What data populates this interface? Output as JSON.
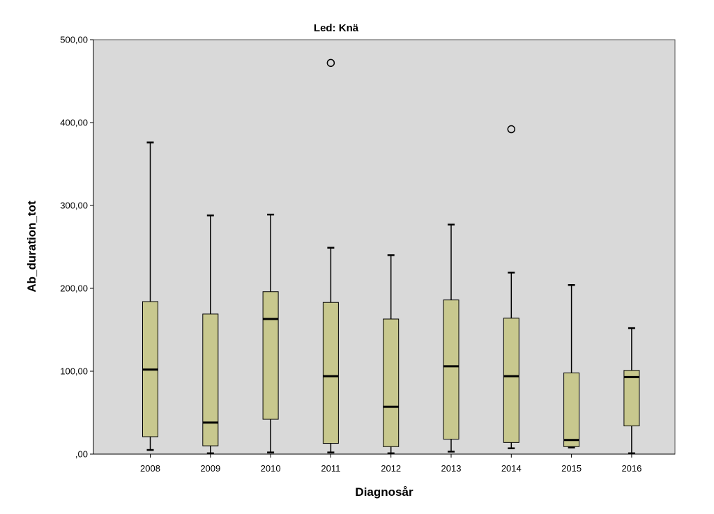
{
  "chart_data": {
    "type": "boxplot",
    "title": "Led: Knä",
    "xlabel": "Diagnosår",
    "ylabel": "Ab_duration_tot",
    "ylim": [
      0,
      500
    ],
    "y_ticks": [
      0,
      100,
      200,
      300,
      400,
      500
    ],
    "y_tick_labels": [
      ",00",
      "100,00",
      "200,00",
      "300,00",
      "400,00",
      "500,00"
    ],
    "categories": [
      "2008",
      "2009",
      "2010",
      "2011",
      "2012",
      "2013",
      "2014",
      "2015",
      "2016"
    ],
    "boxes": [
      {
        "category": "2008",
        "whisker_low": 5,
        "q1": 21,
        "median": 102,
        "q3": 184,
        "whisker_high": 376,
        "outliers": []
      },
      {
        "category": "2009",
        "whisker_low": 1,
        "q1": 10,
        "median": 38,
        "q3": 169,
        "whisker_high": 288,
        "outliers": []
      },
      {
        "category": "2010",
        "whisker_low": 2,
        "q1": 42,
        "median": 163,
        "q3": 196,
        "whisker_high": 289,
        "outliers": []
      },
      {
        "category": "2011",
        "whisker_low": 2,
        "q1": 13,
        "median": 94,
        "q3": 183,
        "whisker_high": 249,
        "outliers": [
          472
        ]
      },
      {
        "category": "2012",
        "whisker_low": 1,
        "q1": 9,
        "median": 57,
        "q3": 163,
        "whisker_high": 240,
        "outliers": []
      },
      {
        "category": "2013",
        "whisker_low": 3,
        "q1": 18,
        "median": 106,
        "q3": 186,
        "whisker_high": 277,
        "outliers": []
      },
      {
        "category": "2014",
        "whisker_low": 7,
        "q1": 14,
        "median": 94,
        "q3": 164,
        "whisker_high": 219,
        "outliers": [
          392
        ]
      },
      {
        "category": "2015",
        "whisker_low": 8,
        "q1": 9,
        "median": 17,
        "q3": 98,
        "whisker_high": 204,
        "outliers": []
      },
      {
        "category": "2016",
        "whisker_low": 1,
        "q1": 34,
        "median": 93,
        "q3": 101,
        "whisker_high": 152,
        "outliers": []
      }
    ],
    "colors": {
      "plot_background": "#d9d9d9",
      "box_fill": "#c8c88e",
      "stroke": "#000000"
    },
    "grid": false,
    "legend": "none"
  }
}
